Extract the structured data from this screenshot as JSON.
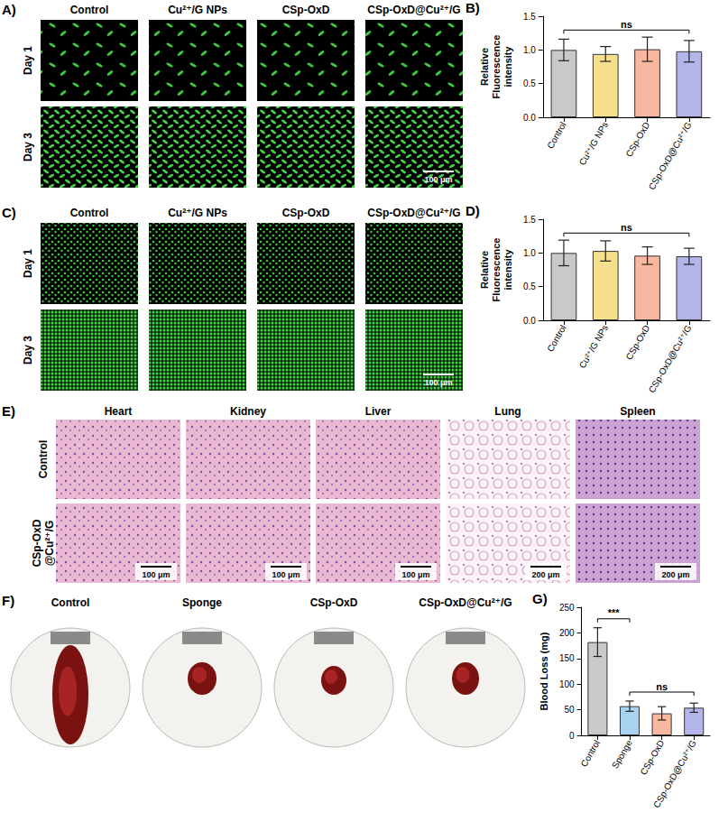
{
  "image_panels": [
    {
      "panel": "A)",
      "columns": [
        "Control",
        "Cu²⁺/G NPs",
        "CSp-OxD",
        "CSp-OxD@Cu²⁺/G"
      ],
      "rows": [
        "Day 1",
        "Day 3"
      ],
      "scale_bar": "100 μm"
    },
    {
      "panel": "C)",
      "columns": [
        "Control",
        "Cu²⁺/G NPs",
        "CSp-OxD",
        "CSp-OxD@Cu²⁺/G"
      ],
      "rows": [
        "Day 1",
        "Day 3"
      ],
      "scale_bar": "100 μm"
    },
    {
      "panel": "E)",
      "columns": [
        "Heart",
        "Kidney",
        "Liver",
        "Lung",
        "Spleen"
      ],
      "rows": [
        "Control",
        "CSp-OxD@Cu²⁺/G"
      ],
      "scale_bars": [
        "100 μm",
        "100 μm",
        "100 μm",
        "200 μm",
        "200 μm"
      ]
    },
    {
      "panel": "F)",
      "columns": [
        "Control",
        "Sponge",
        "CSp-OxD",
        "CSp-OxD@Cu²⁺/G"
      ]
    }
  ],
  "chart_data": [
    {
      "panel": "B)",
      "type": "bar",
      "categories": [
        "Control",
        "Cu²⁺/G NPs",
        "CSp-OxD",
        "CSp-OxD@Cu²⁺/G"
      ],
      "values": [
        1.0,
        0.94,
        1.01,
        0.98
      ],
      "errors": [
        0.16,
        0.11,
        0.18,
        0.16
      ],
      "colors": [
        "#c9c9c9",
        "#f6e08e",
        "#f8b79f",
        "#b4b5e8"
      ],
      "ylabel": "Relative Fluorescence intensity",
      "ylim": [
        0,
        1.5
      ],
      "yticks": [
        {
          "value": 0,
          "label": "0.0"
        },
        {
          "value": 0.5,
          "label": "0.5"
        },
        {
          "value": 1,
          "label": "1.0"
        },
        {
          "value": 1.5,
          "label": "1.5"
        }
      ],
      "grid": false,
      "annotations": [
        {
          "text": "ns",
          "categories": [
            "Control",
            "CSp-OxD@Cu²⁺/G"
          ]
        }
      ]
    },
    {
      "panel": "D)",
      "type": "bar",
      "categories": [
        "Control",
        "Cu²⁺/G NPs",
        "CSp-OxD",
        "CSp-OxD@Cu²⁺/G"
      ],
      "values": [
        1.0,
        1.03,
        0.96,
        0.95
      ],
      "errors": [
        0.19,
        0.15,
        0.13,
        0.12
      ],
      "colors": [
        "#c9c9c9",
        "#f6e08e",
        "#f8b79f",
        "#b4b5e8"
      ],
      "ylabel": "Relative Fluorescence intensity",
      "ylim": [
        0,
        1.5
      ],
      "yticks": [
        {
          "value": 0,
          "label": "0.0"
        },
        {
          "value": 0.5,
          "label": "0.5"
        },
        {
          "value": 1,
          "label": "1.0"
        },
        {
          "value": 1.5,
          "label": "1.5"
        }
      ],
      "grid": false,
      "annotations": [
        {
          "text": "ns",
          "categories": [
            "Control",
            "CSp-OxD@Cu²⁺/G"
          ]
        }
      ]
    },
    {
      "panel": "G)",
      "type": "bar",
      "categories": [
        "Control",
        "Sponge",
        "CSp-OxD",
        "CSp-OxD@Cu²⁺/G"
      ],
      "values": [
        182,
        57,
        43,
        54
      ],
      "errors": [
        28,
        10,
        13,
        9
      ],
      "colors": [
        "#c9c9c9",
        "#a9d3f0",
        "#f8b79f",
        "#b4b5e8"
      ],
      "ylabel": "Blood Loss (mg)",
      "ylim": [
        0,
        250
      ],
      "yticks": [
        0,
        50,
        100,
        150,
        200,
        250
      ],
      "grid": false,
      "annotations": [
        {
          "text": "***",
          "categories": [
            "Control",
            "Sponge"
          ]
        },
        {
          "text": "ns",
          "categories": [
            "Sponge",
            "CSp-OxD@Cu²⁺/G"
          ]
        }
      ]
    }
  ]
}
